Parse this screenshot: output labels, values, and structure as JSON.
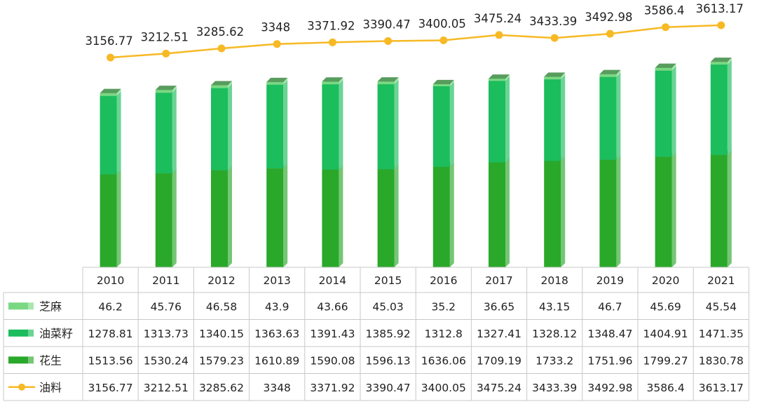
{
  "chart_data": {
    "type": "bar",
    "stacked": true,
    "categories": [
      "2010",
      "2011",
      "2012",
      "2013",
      "2014",
      "2015",
      "2016",
      "2017",
      "2018",
      "2019",
      "2020",
      "2021"
    ],
    "series": [
      {
        "name": "花生",
        "type": "bar",
        "color": "#2aa82a",
        "values": [
          1513.56,
          1530.24,
          1579.23,
          1610.89,
          1590.08,
          1596.13,
          1636.06,
          1709.19,
          1733.2,
          1751.96,
          1799.27,
          1830.78
        ],
        "labels": [
          "1513.56",
          "1530.24",
          "1579.23",
          "1610.89",
          "1590.08",
          "1596.13",
          "1636.06",
          "1709.19",
          "1733.2",
          "1751.96",
          "1799.27",
          "1830.78"
        ]
      },
      {
        "name": "油菜籽",
        "type": "bar",
        "color": "#1bbd5c",
        "values": [
          1278.81,
          1313.73,
          1340.15,
          1363.63,
          1391.43,
          1385.92,
          1312.8,
          1327.41,
          1328.12,
          1348.47,
          1404.91,
          1471.35
        ],
        "labels": [
          "1278.81",
          "1313.73",
          "1340.15",
          "1363.63",
          "1391.43",
          "1385.92",
          "1312.8",
          "1327.41",
          "1328.12",
          "1348.47",
          "1404.91",
          "1471.35"
        ]
      },
      {
        "name": "芝麻",
        "type": "bar",
        "color": "#7ad882",
        "values": [
          46.2,
          45.76,
          46.58,
          43.9,
          43.66,
          45.03,
          35.2,
          36.65,
          43.15,
          46.7,
          45.69,
          45.54
        ],
        "labels": [
          "46.2",
          "45.76",
          "46.58",
          "43.9",
          "43.66",
          "45.03",
          "35.2",
          "36.65",
          "43.15",
          "46.7",
          "45.69",
          "45.54"
        ]
      },
      {
        "name": "油料",
        "type": "line",
        "color": "#f7b924",
        "values": [
          3156.77,
          3212.51,
          3285.62,
          3348,
          3371.92,
          3390.47,
          3400.05,
          3475.24,
          3433.39,
          3492.98,
          3586.4,
          3613.17
        ],
        "labels": [
          "3156.77",
          "3212.51",
          "3285.62",
          "3348",
          "3371.92",
          "3390.47",
          "3400.05",
          "3475.24",
          "3433.39",
          "3492.98",
          "3586.4",
          "3613.17"
        ]
      }
    ],
    "table_row_order": [
      "芝麻",
      "油菜籽",
      "花生",
      "油料"
    ],
    "legend_position": "data-table",
    "grid": false
  }
}
